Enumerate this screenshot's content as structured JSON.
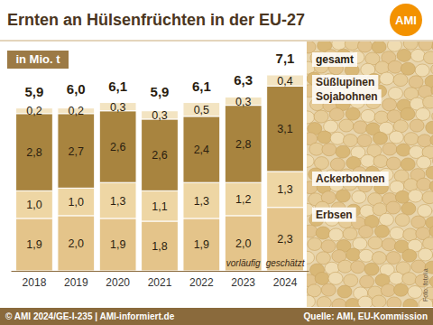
{
  "chart_data": {
    "type": "bar",
    "stacked": true,
    "title": "Ernten an Hülsenfrüchten in der EU-27",
    "subtitle": "in Mio. t",
    "logo": "AMI",
    "categories": [
      "2018",
      "2019",
      "2020",
      "2021",
      "2022",
      "2023",
      "2024"
    ],
    "series": [
      {
        "name": "Erbsen",
        "color": "#e4c48a",
        "values": [
          1.9,
          2.0,
          1.9,
          1.8,
          1.9,
          2.0,
          2.3
        ],
        "value_labels": [
          "1,9",
          "2,0",
          "1,9",
          "1,8",
          "1,9",
          "2,0",
          "2,3"
        ]
      },
      {
        "name": "Ackerbohnen",
        "color": "#eed6a4",
        "values": [
          1.0,
          1.0,
          1.3,
          1.1,
          1.3,
          1.2,
          1.3
        ],
        "value_labels": [
          "1,0",
          "1,0",
          "1,3",
          "1,1",
          "1,3",
          "1,2",
          "1,3"
        ]
      },
      {
        "name": "Sojabohnen",
        "color": "#a8843f",
        "values": [
          2.8,
          2.7,
          2.6,
          2.6,
          2.4,
          2.8,
          3.1
        ],
        "value_labels": [
          "2,8",
          "2,7",
          "2,6",
          "2,6",
          "2,4",
          "2,8",
          "3,1"
        ]
      },
      {
        "name": "Süßlupinen",
        "color": "#f3e4c2",
        "values": [
          0.2,
          0.2,
          0.3,
          0.3,
          0.5,
          0.3,
          0.4
        ],
        "value_labels": [
          "0,2",
          "0,2",
          "0,3",
          "0,3",
          "0,5",
          "0,3",
          "0,4"
        ]
      }
    ],
    "total_name": "gesamt",
    "totals": [
      5.9,
      6.0,
      6.1,
      5.9,
      6.1,
      6.3,
      7.1
    ],
    "total_labels": [
      "5,9",
      "6,0",
      "6,1",
      "5,9",
      "6,1",
      "6,3",
      "7,1"
    ],
    "annotations": [
      {
        "category": "2023",
        "text": "vorläufig"
      },
      {
        "category": "2024",
        "text": "geschätzt"
      }
    ],
    "ylim": [
      0,
      7.1
    ],
    "data_labels": true,
    "tick_labels": "x",
    "legend": "right",
    "copyright": "© AMI 2024/GE-I-235 | AMI-informiert.de",
    "source": "Quelle: AMI, EU-Kommission",
    "photo_credit": "Foto: fotolia"
  }
}
